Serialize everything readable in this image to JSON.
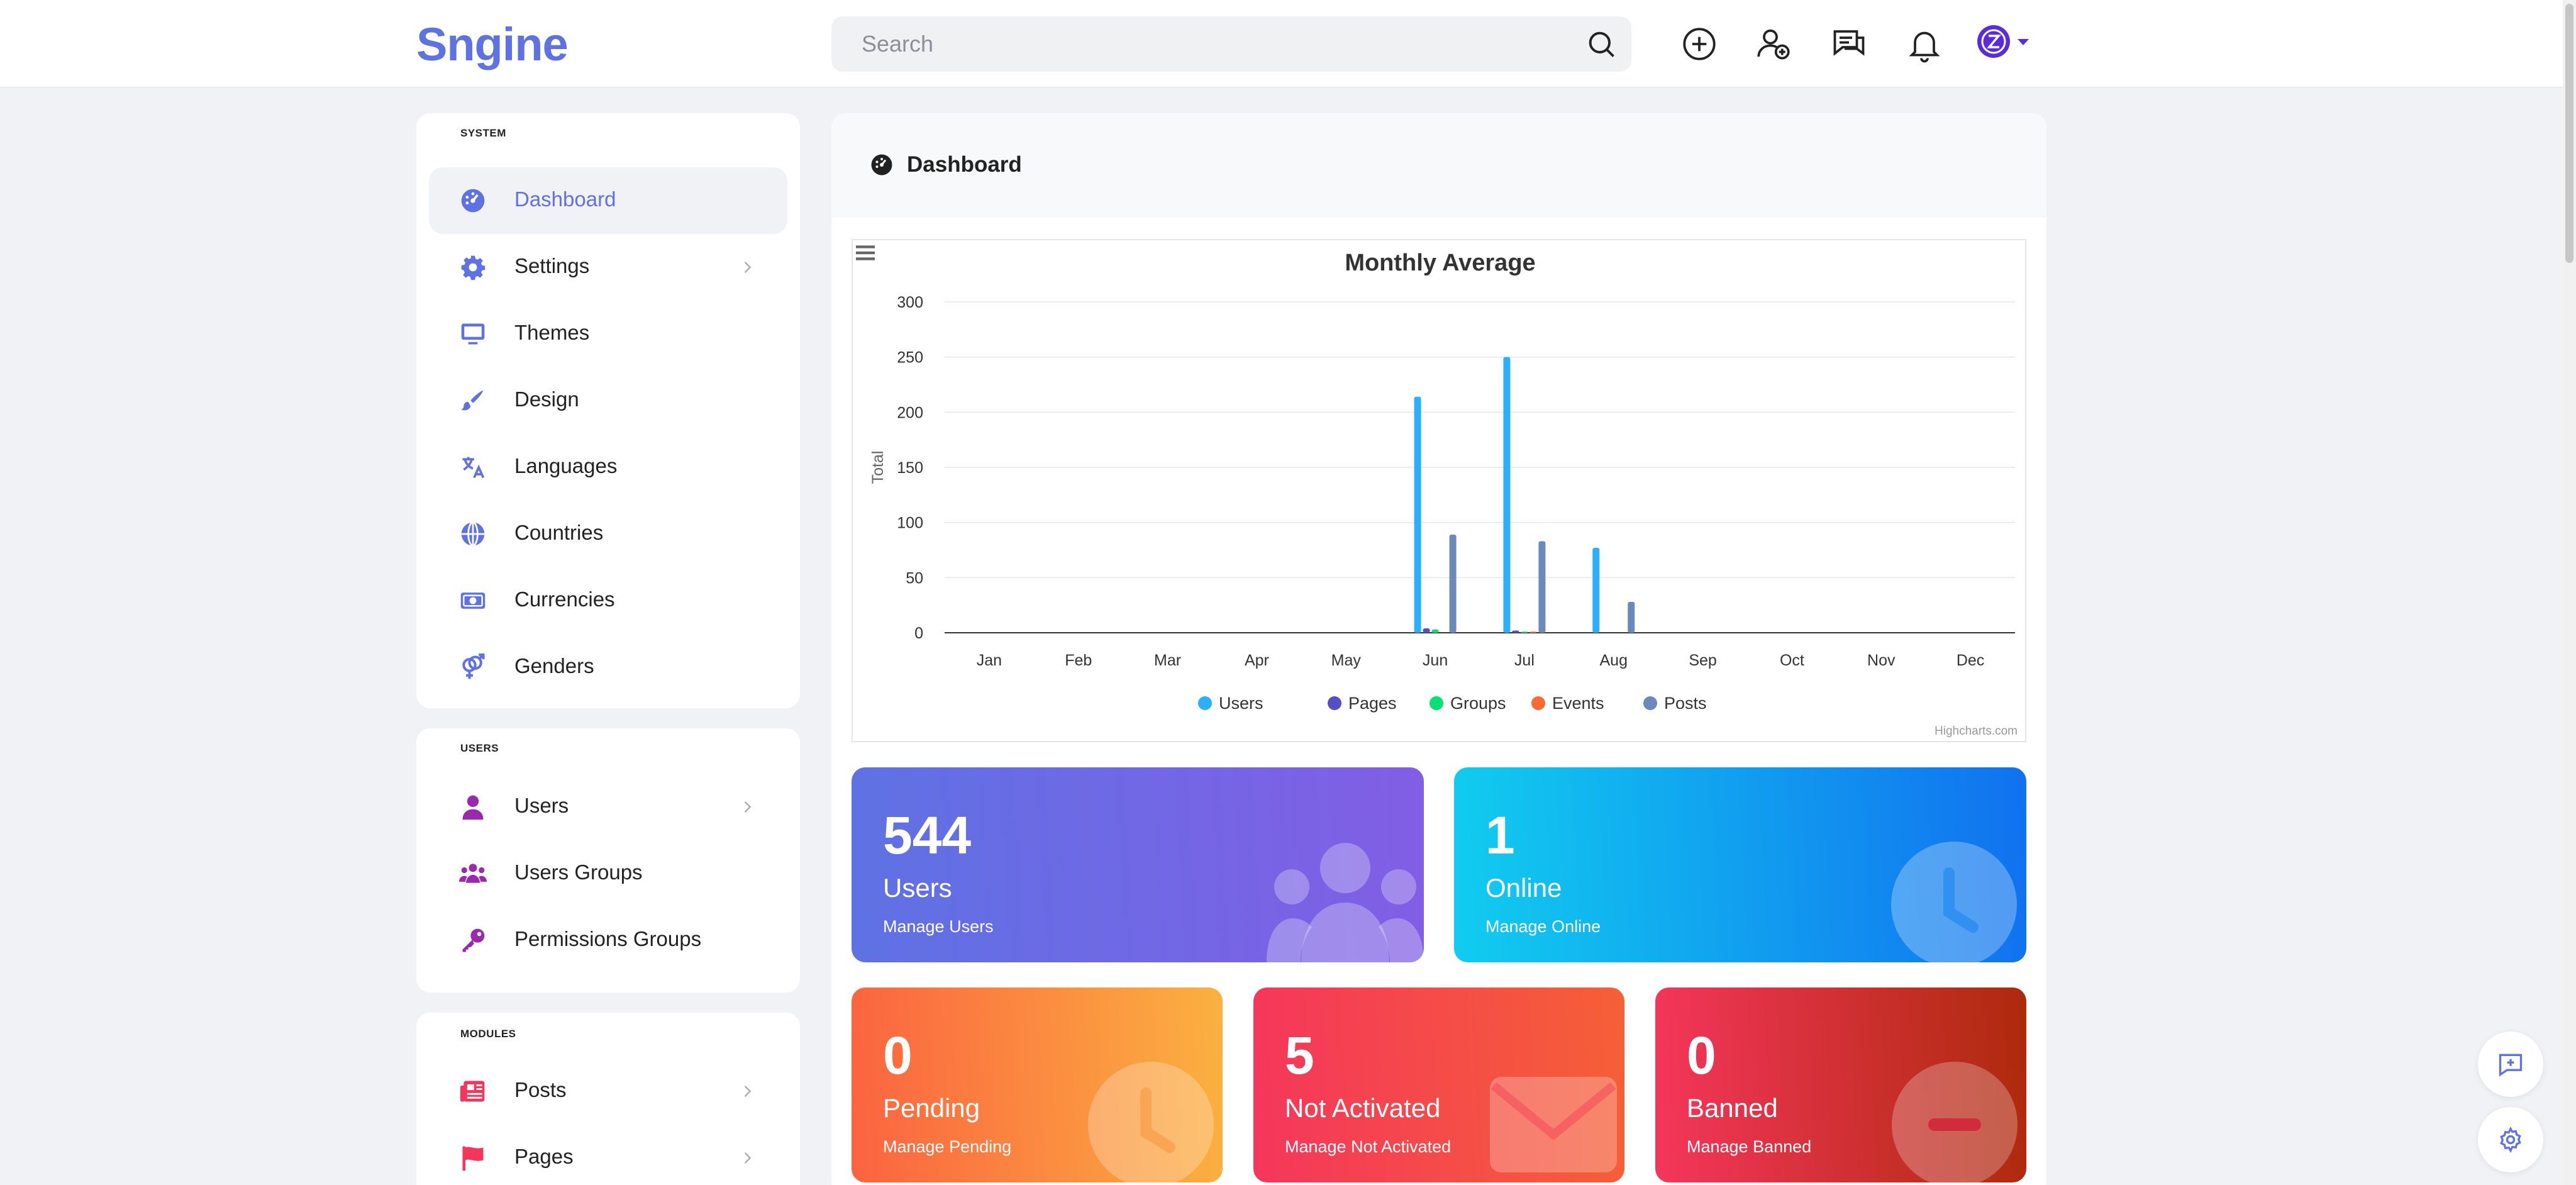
{
  "header": {
    "logo": "Sngine",
    "search_placeholder": "Search"
  },
  "sidebar": {
    "system": {
      "title": "SYSTEM",
      "items": [
        {
          "label": "Dashboard",
          "icon": "dashboard-icon",
          "active": true
        },
        {
          "label": "Settings",
          "icon": "gear-icon",
          "chevron": true
        },
        {
          "label": "Themes",
          "icon": "monitor-icon"
        },
        {
          "label": "Design",
          "icon": "paintbrush-icon"
        },
        {
          "label": "Languages",
          "icon": "translate-icon"
        },
        {
          "label": "Countries",
          "icon": "globe-icon"
        },
        {
          "label": "Currencies",
          "icon": "money-icon"
        },
        {
          "label": "Genders",
          "icon": "gender-icon"
        }
      ]
    },
    "users": {
      "title": "USERS",
      "items": [
        {
          "label": "Users",
          "icon": "user-icon",
          "chevron": true
        },
        {
          "label": "Users Groups",
          "icon": "users-group-icon"
        },
        {
          "label": "Permissions Groups",
          "icon": "key-icon"
        }
      ]
    },
    "modules": {
      "title": "MODULES",
      "items": [
        {
          "label": "Posts",
          "icon": "newspaper-icon",
          "chevron": true
        },
        {
          "label": "Pages",
          "icon": "flag-icon",
          "chevron": true
        }
      ]
    }
  },
  "main": {
    "title": "Dashboard"
  },
  "chart_data": {
    "type": "bar",
    "title": "Monthly Average",
    "ylabel": "Total",
    "xlabel": "",
    "ylim": [
      0,
      300
    ],
    "yticks": [
      0,
      50,
      100,
      150,
      200,
      250,
      300
    ],
    "categories": [
      "Jan",
      "Feb",
      "Mar",
      "Apr",
      "May",
      "Jun",
      "Jul",
      "Aug",
      "Sep",
      "Oct",
      "Nov",
      "Dec"
    ],
    "series": [
      {
        "name": "Users",
        "color": "#2caffe",
        "values": [
          0,
          0,
          0,
          0,
          0,
          214,
          250,
          77,
          0,
          0,
          0,
          0
        ]
      },
      {
        "name": "Pages",
        "color": "#544fc5",
        "values": [
          0,
          0,
          0,
          0,
          0,
          4,
          2,
          0,
          0,
          0,
          0,
          0
        ]
      },
      {
        "name": "Groups",
        "color": "#00e272",
        "values": [
          0,
          0,
          0,
          0,
          0,
          3,
          1,
          0,
          0,
          0,
          0,
          0
        ]
      },
      {
        "name": "Events",
        "color": "#fe6a35",
        "values": [
          0,
          0,
          0,
          0,
          0,
          0,
          1,
          0,
          0,
          0,
          0,
          0
        ]
      },
      {
        "name": "Posts",
        "color": "#6b8abc",
        "values": [
          0,
          0,
          0,
          0,
          0,
          89,
          83,
          28,
          0,
          0,
          0,
          0
        ]
      }
    ],
    "credits": "Highcharts.com",
    "legend": "bottom-center",
    "grid": true
  },
  "stats": {
    "users": {
      "value": "544",
      "label": "Users",
      "sub": "Manage Users"
    },
    "online": {
      "value": "1",
      "label": "Online",
      "sub": "Manage Online"
    },
    "pending": {
      "value": "0",
      "label": "Pending",
      "sub": "Manage Pending"
    },
    "not_activated": {
      "value": "5",
      "label": "Not Activated",
      "sub": "Manage Not Activated"
    },
    "banned": {
      "value": "0",
      "label": "Banned",
      "sub": "Manage Banned"
    }
  },
  "colors": {
    "accent": "#5e72e4",
    "users_card": [
      "#5e72e4",
      "#825ee4"
    ],
    "online_card": [
      "#11cdef",
      "#1171ef"
    ],
    "pending_card": [
      "#fb6340",
      "#fbb140"
    ],
    "not_activated_card": [
      "#f5365c",
      "#f56036"
    ],
    "banned_card": [
      "#f5365c",
      "#ad2a0c"
    ]
  }
}
